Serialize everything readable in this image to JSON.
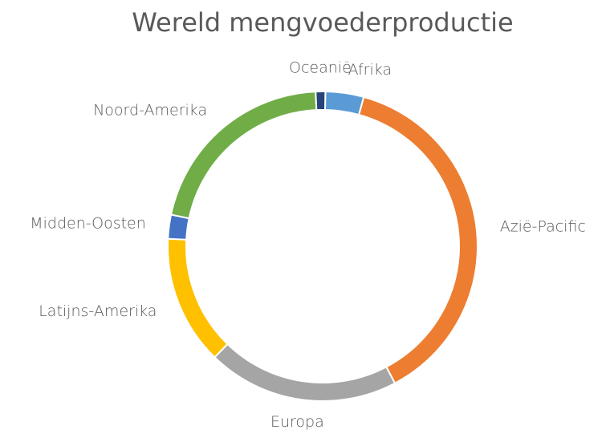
{
  "chart_data": {
    "type": "donut",
    "title": "Wereld mengvoederproductie",
    "categories": [
      "Afrika",
      "Azië-Pacific",
      "Europa",
      "Latijns-Amerika",
      "Midden-Oosten",
      "Noord-Amerika",
      "Oceanië"
    ],
    "values": [
      4,
      38,
      20,
      13.5,
      2.5,
      21,
      1
    ],
    "colors": [
      "#5b9bd5",
      "#ed7d31",
      "#a5a5a5",
      "#ffc000",
      "#4472c4",
      "#70ad47",
      "#264478"
    ]
  }
}
